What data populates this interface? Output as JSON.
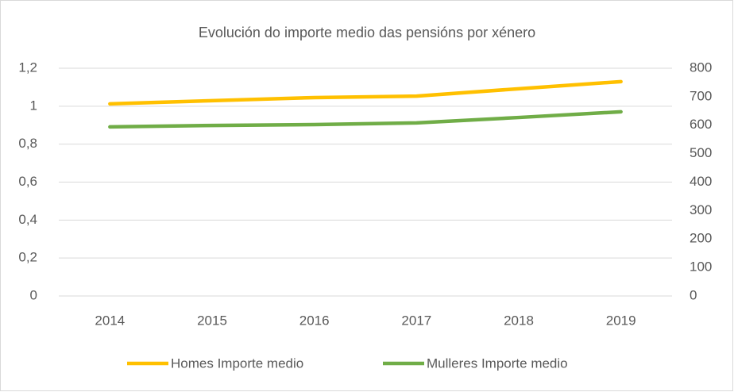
{
  "chart_data": {
    "type": "line",
    "title": "Evolución do importe medio das pensións por xénero",
    "categories": [
      "2014",
      "2015",
      "2016",
      "2017",
      "2018",
      "2019"
    ],
    "series": [
      {
        "name": "Homes Importe medio",
        "color": "#ffc000",
        "axis": "y2",
        "values": [
          675,
          686,
          697,
          702,
          728,
          753
        ]
      },
      {
        "name": "Mulleres Importe medio",
        "color": "#70ad47",
        "axis": "y2",
        "values": [
          594,
          599,
          602,
          608,
          627,
          647
        ]
      }
    ],
    "ylim": [
      0,
      1.2
    ],
    "yticks": [
      0,
      {
        "value": 0.2,
        "label": "0,2"
      },
      {
        "value": 0.4,
        "label": "0,4"
      },
      {
        "value": 0.6,
        "label": "0,6"
      },
      {
        "value": 0.8,
        "label": "0,8"
      },
      1,
      {
        "value": 1.2,
        "label": "1,2"
      }
    ],
    "y2lim": [
      0,
      800
    ],
    "y2ticks": [
      0,
      100,
      200,
      300,
      400,
      500,
      600,
      700,
      800
    ],
    "grid": true,
    "legend": "bottom"
  }
}
